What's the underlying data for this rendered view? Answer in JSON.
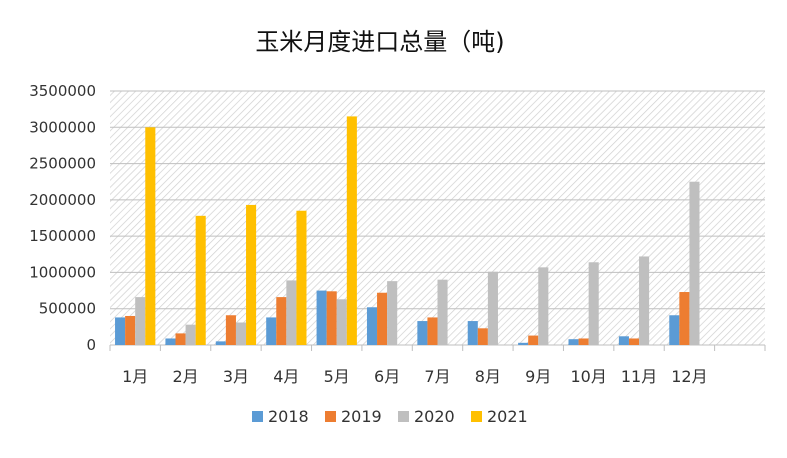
{
  "chart_data": {
    "type": "bar",
    "title": "玉米月度进口总量（吨)",
    "xlabel": "",
    "ylabel": "",
    "ylim": [
      0,
      3500000
    ],
    "yticks": [
      0,
      500000,
      1000000,
      1500000,
      2000000,
      2500000,
      3000000,
      3500000
    ],
    "ytick_labels": [
      "0",
      "500000",
      "1000000",
      "1500000",
      "2000000",
      "2500000",
      "3000000",
      "3500000"
    ],
    "categories": [
      "1月",
      "2月",
      "3月",
      "4月",
      "5月",
      "6月",
      "7月",
      "8月",
      "9月",
      "10月",
      "11月",
      "12月",
      ""
    ],
    "series": [
      {
        "name": "2018",
        "color": "#5B9BD5",
        "values": [
          380000,
          90000,
          50000,
          380000,
          750000,
          520000,
          330000,
          330000,
          30000,
          80000,
          120000,
          410000,
          null
        ]
      },
      {
        "name": "2019",
        "color": "#ED7D31",
        "values": [
          400000,
          160000,
          410000,
          660000,
          740000,
          720000,
          380000,
          230000,
          130000,
          90000,
          90000,
          730000,
          null
        ]
      },
      {
        "name": "2020",
        "color": "#BFBFBF",
        "values": [
          660000,
          280000,
          310000,
          890000,
          630000,
          880000,
          900000,
          1010000,
          1070000,
          1140000,
          1220000,
          2250000,
          null
        ]
      },
      {
        "name": "2021",
        "color": "#FFC000",
        "values": [
          3000000,
          1780000,
          1930000,
          1850000,
          3150000,
          null,
          null,
          null,
          null,
          null,
          null,
          null,
          null
        ]
      }
    ],
    "grid": true,
    "plot_background": "hatched",
    "legend_position": "bottom"
  }
}
